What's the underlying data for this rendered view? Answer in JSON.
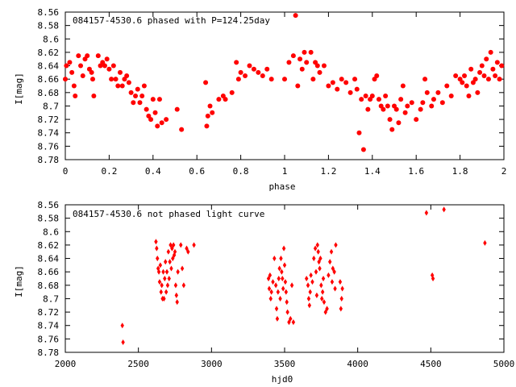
{
  "chart_data": [
    {
      "type": "scatter",
      "title": "084157-4530.6 phased with P=124.25day",
      "xlabel": "phase",
      "ylabel": "I[mag]",
      "xlim": [
        0,
        2
      ],
      "ylim": [
        8.56,
        8.78
      ],
      "y_inverted": true,
      "grid": false,
      "marker": "filled-circle",
      "color": "#ff0000",
      "x_ticks": [
        "0",
        "0.2",
        "0.4",
        "0.6",
        "0.8",
        "1",
        "1.2",
        "1.4",
        "1.6",
        "1.8",
        "2"
      ],
      "y_ticks": [
        "8.56",
        "8.58",
        "8.6",
        "8.62",
        "8.64",
        "8.66",
        "8.68",
        "8.7",
        "8.72",
        "8.74",
        "8.76",
        "8.78"
      ],
      "points": [
        [
          0.0,
          8.66
        ],
        [
          0.005,
          8.64
        ],
        [
          0.02,
          8.635
        ],
        [
          0.03,
          8.65
        ],
        [
          0.04,
          8.67
        ],
        [
          0.045,
          8.685
        ],
        [
          0.06,
          8.625
        ],
        [
          0.07,
          8.64
        ],
        [
          0.08,
          8.655
        ],
        [
          0.09,
          8.63
        ],
        [
          0.1,
          8.625
        ],
        [
          0.11,
          8.645
        ],
        [
          0.12,
          8.65
        ],
        [
          0.125,
          8.66
        ],
        [
          0.13,
          8.685
        ],
        [
          0.15,
          8.625
        ],
        [
          0.16,
          8.64
        ],
        [
          0.17,
          8.635
        ],
        [
          0.18,
          8.64
        ],
        [
          0.19,
          8.63
        ],
        [
          0.2,
          8.645
        ],
        [
          0.21,
          8.66
        ],
        [
          0.22,
          8.64
        ],
        [
          0.23,
          8.66
        ],
        [
          0.24,
          8.67
        ],
        [
          0.25,
          8.65
        ],
        [
          0.26,
          8.67
        ],
        [
          0.27,
          8.66
        ],
        [
          0.28,
          8.655
        ],
        [
          0.29,
          8.665
        ],
        [
          0.3,
          8.68
        ],
        [
          0.31,
          8.695
        ],
        [
          0.32,
          8.685
        ],
        [
          0.33,
          8.675
        ],
        [
          0.34,
          8.695
        ],
        [
          0.35,
          8.685
        ],
        [
          0.36,
          8.67
        ],
        [
          0.37,
          8.705
        ],
        [
          0.38,
          8.715
        ],
        [
          0.39,
          8.72
        ],
        [
          0.4,
          8.69
        ],
        [
          0.41,
          8.71
        ],
        [
          0.42,
          8.73
        ],
        [
          0.43,
          8.69
        ],
        [
          0.44,
          8.725
        ],
        [
          0.46,
          8.72
        ],
        [
          0.51,
          8.705
        ],
        [
          0.53,
          8.735
        ],
        [
          0.64,
          8.665
        ],
        [
          0.645,
          8.73
        ],
        [
          0.65,
          8.715
        ],
        [
          0.66,
          8.7
        ],
        [
          0.67,
          8.71
        ],
        [
          0.7,
          8.69
        ],
        [
          0.72,
          8.685
        ],
        [
          0.73,
          8.69
        ],
        [
          0.76,
          8.68
        ],
        [
          0.78,
          8.635
        ],
        [
          0.79,
          8.66
        ],
        [
          0.8,
          8.65
        ],
        [
          0.82,
          8.655
        ],
        [
          0.84,
          8.64
        ],
        [
          0.86,
          8.645
        ],
        [
          0.88,
          8.65
        ],
        [
          0.9,
          8.655
        ],
        [
          0.92,
          8.645
        ],
        [
          0.94,
          8.66
        ],
        [
          1.0,
          8.66
        ],
        [
          1.02,
          8.635
        ],
        [
          1.04,
          8.625
        ],
        [
          1.05,
          8.565
        ],
        [
          1.06,
          8.67
        ],
        [
          1.07,
          8.63
        ],
        [
          1.08,
          8.645
        ],
        [
          1.09,
          8.62
        ],
        [
          1.1,
          8.635
        ],
        [
          1.12,
          8.62
        ],
        [
          1.13,
          8.66
        ],
        [
          1.14,
          8.635
        ],
        [
          1.15,
          8.64
        ],
        [
          1.16,
          8.65
        ],
        [
          1.18,
          8.64
        ],
        [
          1.2,
          8.67
        ],
        [
          1.22,
          8.665
        ],
        [
          1.24,
          8.675
        ],
        [
          1.26,
          8.66
        ],
        [
          1.28,
          8.665
        ],
        [
          1.3,
          8.68
        ],
        [
          1.32,
          8.66
        ],
        [
          1.33,
          8.675
        ],
        [
          1.34,
          8.74
        ],
        [
          1.35,
          8.69
        ],
        [
          1.36,
          8.765
        ],
        [
          1.37,
          8.685
        ],
        [
          1.38,
          8.705
        ],
        [
          1.39,
          8.69
        ],
        [
          1.4,
          8.685
        ],
        [
          1.41,
          8.66
        ],
        [
          1.42,
          8.655
        ],
        [
          1.43,
          8.69
        ],
        [
          1.44,
          8.7
        ],
        [
          1.45,
          8.705
        ],
        [
          1.46,
          8.685
        ],
        [
          1.47,
          8.7
        ],
        [
          1.48,
          8.72
        ],
        [
          1.49,
          8.735
        ],
        [
          1.5,
          8.7
        ],
        [
          1.51,
          8.705
        ],
        [
          1.52,
          8.725
        ],
        [
          1.53,
          8.69
        ],
        [
          1.54,
          8.67
        ],
        [
          1.55,
          8.71
        ],
        [
          1.56,
          8.7
        ],
        [
          1.58,
          8.695
        ],
        [
          1.6,
          8.72
        ],
        [
          1.62,
          8.705
        ],
        [
          1.63,
          8.695
        ],
        [
          1.64,
          8.66
        ],
        [
          1.65,
          8.68
        ],
        [
          1.67,
          8.7
        ],
        [
          1.68,
          8.69
        ],
        [
          1.7,
          8.68
        ],
        [
          1.72,
          8.695
        ],
        [
          1.74,
          8.67
        ],
        [
          1.76,
          8.685
        ],
        [
          1.78,
          8.655
        ],
        [
          1.8,
          8.66
        ],
        [
          1.81,
          8.665
        ],
        [
          1.82,
          8.655
        ],
        [
          1.83,
          8.67
        ],
        [
          1.84,
          8.685
        ],
        [
          1.85,
          8.645
        ],
        [
          1.86,
          8.665
        ],
        [
          1.87,
          8.66
        ],
        [
          1.88,
          8.68
        ],
        [
          1.89,
          8.65
        ],
        [
          1.9,
          8.64
        ],
        [
          1.91,
          8.655
        ],
        [
          1.92,
          8.63
        ],
        [
          1.93,
          8.66
        ],
        [
          1.94,
          8.62
        ],
        [
          1.95,
          8.645
        ],
        [
          1.96,
          8.655
        ],
        [
          1.97,
          8.635
        ],
        [
          1.98,
          8.66
        ],
        [
          1.99,
          8.64
        ]
      ]
    },
    {
      "type": "scatter",
      "title": "084157-4530.6 not phased light curve",
      "xlabel": "hjd0",
      "ylabel": "I[mag]",
      "xlim": [
        2000,
        5000
      ],
      "ylim": [
        8.56,
        8.78
      ],
      "y_inverted": true,
      "grid": false,
      "marker": "small-diamond",
      "color": "#ff0000",
      "x_ticks": [
        "2000",
        "2500",
        "3000",
        "3500",
        "4000",
        "4500",
        "5000"
      ],
      "y_ticks": [
        "8.56",
        "8.58",
        "8.6",
        "8.62",
        "8.64",
        "8.66",
        "8.68",
        "8.7",
        "8.72",
        "8.74",
        "8.76",
        "8.78"
      ],
      "points": [
        [
          2390,
          8.74
        ],
        [
          2395,
          8.765
        ],
        [
          2620,
          8.615
        ],
        [
          2625,
          8.625
        ],
        [
          2630,
          8.64
        ],
        [
          2635,
          8.655
        ],
        [
          2640,
          8.66
        ],
        [
          2645,
          8.675
        ],
        [
          2650,
          8.65
        ],
        [
          2655,
          8.69
        ],
        [
          2660,
          8.68
        ],
        [
          2665,
          8.7
        ],
        [
          2670,
          8.66
        ],
        [
          2675,
          8.7
        ],
        [
          2680,
          8.67
        ],
        [
          2685,
          8.645
        ],
        [
          2690,
          8.69
        ],
        [
          2695,
          8.66
        ],
        [
          2700,
          8.68
        ],
        [
          2705,
          8.63
        ],
        [
          2710,
          8.67
        ],
        [
          2715,
          8.645
        ],
        [
          2720,
          8.62
        ],
        [
          2725,
          8.655
        ],
        [
          2730,
          8.625
        ],
        [
          2735,
          8.64
        ],
        [
          2740,
          8.62
        ],
        [
          2745,
          8.635
        ],
        [
          2750,
          8.63
        ],
        [
          2755,
          8.68
        ],
        [
          2760,
          8.695
        ],
        [
          2765,
          8.705
        ],
        [
          2770,
          8.66
        ],
        [
          2790,
          8.62
        ],
        [
          2800,
          8.655
        ],
        [
          2810,
          8.68
        ],
        [
          2830,
          8.625
        ],
        [
          2840,
          8.63
        ],
        [
          2880,
          8.62
        ],
        [
          3390,
          8.67
        ],
        [
          3395,
          8.685
        ],
        [
          3400,
          8.665
        ],
        [
          3405,
          8.7
        ],
        [
          3410,
          8.69
        ],
        [
          3420,
          8.675
        ],
        [
          3430,
          8.64
        ],
        [
          3440,
          8.68
        ],
        [
          3445,
          8.715
        ],
        [
          3450,
          8.73
        ],
        [
          3455,
          8.69
        ],
        [
          3460,
          8.67
        ],
        [
          3465,
          8.655
        ],
        [
          3470,
          8.7
        ],
        [
          3475,
          8.64
        ],
        [
          3480,
          8.66
        ],
        [
          3485,
          8.67
        ],
        [
          3490,
          8.685
        ],
        [
          3495,
          8.625
        ],
        [
          3500,
          8.65
        ],
        [
          3505,
          8.675
        ],
        [
          3510,
          8.69
        ],
        [
          3515,
          8.705
        ],
        [
          3520,
          8.72
        ],
        [
          3530,
          8.735
        ],
        [
          3540,
          8.73
        ],
        [
          3550,
          8.68
        ],
        [
          3560,
          8.735
        ],
        [
          3650,
          8.67
        ],
        [
          3660,
          8.68
        ],
        [
          3665,
          8.7
        ],
        [
          3670,
          8.71
        ],
        [
          3675,
          8.69
        ],
        [
          3680,
          8.665
        ],
        [
          3690,
          8.675
        ],
        [
          3700,
          8.64
        ],
        [
          3710,
          8.625
        ],
        [
          3715,
          8.66
        ],
        [
          3720,
          8.695
        ],
        [
          3725,
          8.62
        ],
        [
          3730,
          8.63
        ],
        [
          3735,
          8.645
        ],
        [
          3740,
          8.655
        ],
        [
          3745,
          8.64
        ],
        [
          3750,
          8.68
        ],
        [
          3755,
          8.7
        ],
        [
          3760,
          8.69
        ],
        [
          3765,
          8.67
        ],
        [
          3770,
          8.705
        ],
        [
          3780,
          8.72
        ],
        [
          3790,
          8.715
        ],
        [
          3800,
          8.665
        ],
        [
          3810,
          8.645
        ],
        [
          3820,
          8.63
        ],
        [
          3825,
          8.675
        ],
        [
          3830,
          8.655
        ],
        [
          3840,
          8.66
        ],
        [
          3845,
          8.685
        ],
        [
          3850,
          8.62
        ],
        [
          3880,
          8.675
        ],
        [
          3885,
          8.715
        ],
        [
          3890,
          8.7
        ],
        [
          3895,
          8.685
        ],
        [
          4470,
          8.572
        ],
        [
          4510,
          8.665
        ],
        [
          4515,
          8.67
        ],
        [
          4590,
          8.567
        ],
        [
          4870,
          8.617
        ]
      ]
    }
  ]
}
